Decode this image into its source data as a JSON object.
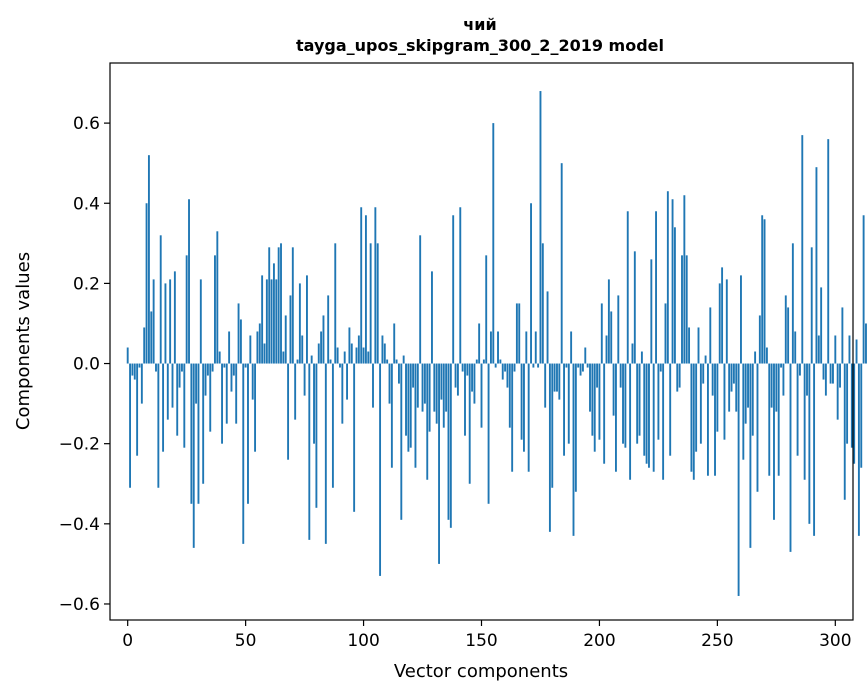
{
  "chart_data": {
    "type": "bar",
    "title": [
      "чий",
      "tayga_upos_skipgram_300_2_2019 model"
    ],
    "xlabel": "Vector components",
    "ylabel": "Components values",
    "xlim": [
      -7.5,
      307.5
    ],
    "ylim": [
      -0.64,
      0.75
    ],
    "xticks": [
      0,
      50,
      100,
      150,
      200,
      250,
      300
    ],
    "xtick_labels": [
      "0",
      "50",
      "100",
      "150",
      "200",
      "250",
      "300"
    ],
    "yticks": [
      -0.6,
      -0.4,
      -0.2,
      0.0,
      0.2,
      0.4,
      0.6
    ],
    "ytick_labels": [
      "−0.6",
      "−0.4",
      "−0.2",
      "0.0",
      "0.2",
      "0.4",
      "0.6"
    ],
    "bar_color": "#1f77b4",
    "grid": false,
    "legend": "none",
    "values": [
      0.04,
      -0.31,
      -0.03,
      -0.04,
      -0.23,
      -0.01,
      -0.1,
      0.09,
      0.4,
      0.52,
      0.13,
      0.21,
      -0.02,
      -0.31,
      0.32,
      -0.22,
      0.2,
      -0.14,
      0.21,
      -0.11,
      0.23,
      -0.18,
      -0.06,
      -0.02,
      -0.21,
      0.27,
      0.41,
      -0.35,
      -0.46,
      -0.1,
      -0.35,
      0.21,
      -0.3,
      -0.08,
      -0.03,
      -0.17,
      -0.02,
      0.27,
      0.33,
      0.03,
      -0.2,
      -0.01,
      -0.15,
      0.08,
      -0.07,
      -0.03,
      -0.15,
      0.15,
      0.11,
      -0.45,
      -0.01,
      -0.35,
      0.07,
      -0.09,
      -0.22,
      0.08,
      0.1,
      0.22,
      0.05,
      0.21,
      0.29,
      0.21,
      0.25,
      0.21,
      0.29,
      0.3,
      0.03,
      0.12,
      -0.24,
      0.17,
      0.29,
      -0.14,
      0.01,
      0.2,
      0.07,
      -0.08,
      0.22,
      -0.44,
      0.02,
      -0.2,
      -0.36,
      0.05,
      0.08,
      0.12,
      -0.45,
      0.17,
      0.01,
      -0.31,
      0.3,
      0.04,
      -0.01,
      -0.15,
      0.03,
      -0.09,
      0.09,
      0.05,
      -0.37,
      0.04,
      0.07,
      0.39,
      0.04,
      0.37,
      0.03,
      0.3,
      -0.11,
      0.39,
      0.3,
      -0.53,
      0.07,
      0.05,
      0.01,
      -0.1,
      -0.26,
      0.1,
      0.01,
      -0.05,
      -0.39,
      0.02,
      -0.18,
      -0.22,
      -0.21,
      -0.06,
      -0.26,
      -0.11,
      0.32,
      -0.12,
      -0.1,
      -0.29,
      -0.17,
      0.23,
      -0.12,
      -0.15,
      -0.5,
      -0.09,
      -0.16,
      -0.12,
      -0.39,
      -0.41,
      0.37,
      -0.06,
      -0.08,
      0.39,
      -0.02,
      -0.18,
      -0.03,
      -0.3,
      -0.07,
      -0.1,
      0.01,
      0.1,
      -0.16,
      0.01,
      0.27,
      -0.35,
      0.08,
      0.6,
      -0.01,
      0.08,
      0.01,
      -0.04,
      -0.02,
      -0.06,
      -0.16,
      -0.27,
      -0.02,
      0.15,
      0.15,
      -0.19,
      -0.22,
      0.08,
      -0.27,
      0.4,
      -0.01,
      0.08,
      -0.01,
      0.68,
      0.3,
      -0.11,
      0.18,
      -0.42,
      -0.31,
      -0.07,
      -0.07,
      -0.09,
      0.5,
      -0.23,
      -0.01,
      -0.2,
      0.08,
      -0.43,
      -0.32,
      -0.01,
      -0.03,
      -0.02,
      0.04,
      -0.01,
      -0.12,
      -0.18,
      -0.22,
      -0.06,
      -0.19,
      0.15,
      -0.25,
      0.07,
      0.21,
      0.13,
      -0.13,
      -0.27,
      0.17,
      -0.06,
      -0.2,
      -0.21,
      0.38,
      -0.29,
      0.05,
      0.28,
      -0.2,
      -0.18,
      0.03,
      -0.23,
      -0.25,
      -0.26,
      0.26,
      -0.27,
      0.38,
      -0.19,
      -0.02,
      -0.29,
      0.15,
      0.43,
      -0.23,
      0.41,
      0.34,
      -0.07,
      -0.06,
      0.27,
      0.42,
      0.27,
      0.09,
      -0.27,
      -0.29,
      -0.22,
      0.09,
      -0.2,
      -0.05,
      0.02,
      -0.28,
      0.14,
      -0.08,
      -0.28,
      -0.17,
      0.2,
      0.24,
      -0.19,
      0.21,
      -0.12,
      -0.07,
      -0.05,
      -0.12,
      -0.58,
      0.22,
      -0.24,
      -0.15,
      -0.11,
      -0.46,
      -0.18,
      0.03,
      -0.32,
      0.12,
      0.37,
      0.36,
      0.04,
      -0.28,
      -0.11,
      -0.39,
      -0.12,
      -0.28,
      -0.01,
      -0.08,
      0.17,
      0.14,
      -0.47,
      0.3,
      0.08,
      -0.23,
      -0.03,
      0.57,
      -0.29,
      -0.08,
      -0.4,
      0.29,
      -0.43,
      0.49,
      0.07,
      0.19,
      -0.04,
      -0.08,
      0.56,
      -0.05,
      -0.05,
      0.07,
      -0.14,
      -0.06,
      0.14,
      -0.34,
      -0.2,
      0.07,
      -0.21,
      -0.25,
      0.06,
      -0.43,
      -0.26,
      0.37,
      0.1
    ]
  }
}
